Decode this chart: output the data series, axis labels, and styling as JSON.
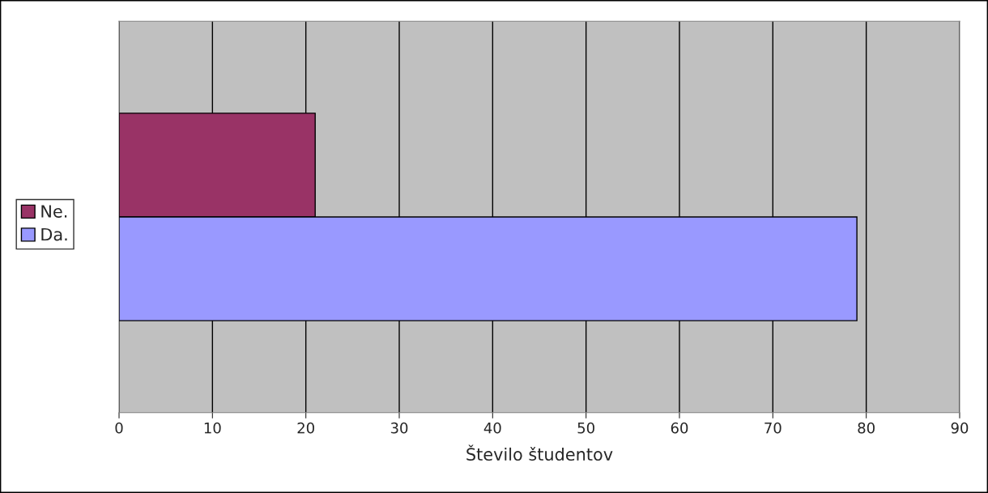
{
  "chart_data": {
    "type": "bar",
    "orientation": "horizontal",
    "categories": [
      null
    ],
    "series": [
      {
        "name": "Ne.",
        "color": "#993366",
        "values": [
          21
        ]
      },
      {
        "name": "Da.",
        "color": "#9999ff",
        "values": [
          79
        ]
      }
    ],
    "xlabel": "Število študentov",
    "xlim": [
      0,
      90
    ],
    "xticks": [
      0,
      10,
      20,
      30,
      40,
      50,
      60,
      70,
      80,
      90
    ],
    "grid": "x",
    "legend": "left",
    "tick_labels": "x"
  }
}
